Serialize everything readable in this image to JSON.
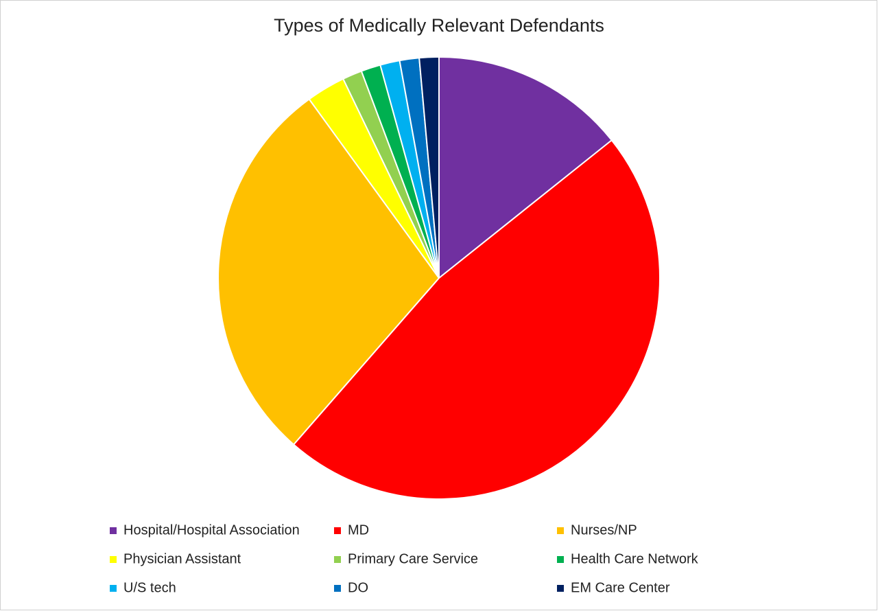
{
  "chart_data": {
    "type": "pie",
    "title": "Types of Medically Relevant Defendants",
    "categories": [
      "Hospital/Hospital Association",
      "MD",
      "Nurses/NP",
      "Physician Assistant",
      "Primary Care Service",
      "Health Care Network",
      "U/S tech",
      "DO",
      "EM Care Center"
    ],
    "values": [
      10,
      33,
      20,
      2,
      1,
      1,
      1,
      1,
      1
    ],
    "colors": [
      "#7030a0",
      "#ff0000",
      "#ffc000",
      "#ffff00",
      "#92d050",
      "#00b050",
      "#00b0f0",
      "#0070c0",
      "#002060"
    ],
    "legend": "bottom"
  }
}
